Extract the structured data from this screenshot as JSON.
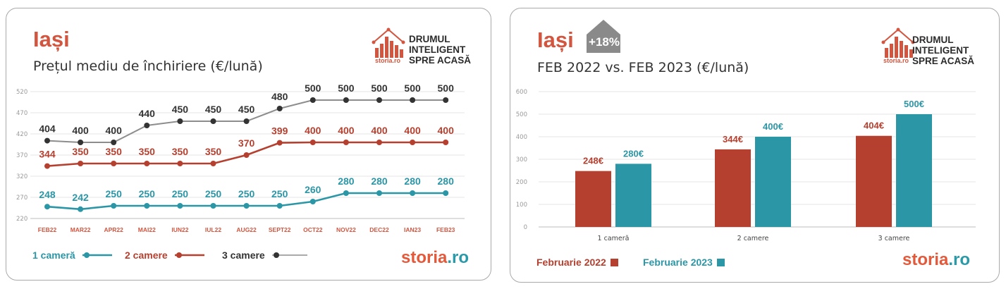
{
  "colors": {
    "accent": "#d2553f",
    "teal": "#2b96a6",
    "red": "#b5402f",
    "gray": "#8d8d8d",
    "dark": "#333333"
  },
  "brand": {
    "line1": "DRUMUL",
    "line2": "INTELIGENT",
    "line3": "SPRE ACASĂ",
    "logo_small": "storia.ro",
    "footer_storia": "storia",
    "footer_ro": ".ro"
  },
  "left_card": {
    "city": "Iași",
    "subtitle": "Prețul mediu de închiriere (€/lună)",
    "legend": [
      {
        "label": "1 cameră",
        "color": "#2b96a6"
      },
      {
        "label": "2 camere",
        "color": "#b5402f"
      },
      {
        "label": "3 camere",
        "color": "#333333"
      }
    ]
  },
  "right_card": {
    "city": "Iași",
    "badge": "+18%",
    "subtitle": "FEB 2022 vs. FEB 2023 (€/lună)",
    "legend": [
      {
        "label": "Februarie 2022",
        "color": "#b5402f"
      },
      {
        "label": "Februarie 2023",
        "color": "#2b96a6"
      }
    ]
  },
  "chart_data": [
    {
      "type": "line",
      "title": "Prețul mediu de închiriere (€/lună)",
      "categories": [
        "FEB22",
        "MAR22",
        "APR22",
        "MAI22",
        "IUN22",
        "IUL22",
        "AUG22",
        "SEPT22",
        "OCT22",
        "NOV22",
        "DEC22",
        "IAN23",
        "FEB23"
      ],
      "ylim": [
        220,
        520
      ],
      "yticks": [
        220,
        270,
        320,
        370,
        420,
        470,
        520
      ],
      "grid": true,
      "legend_position": "bottom-left",
      "series": [
        {
          "name": "1 cameră",
          "color": "#2b96a6",
          "values": [
            248,
            242,
            250,
            250,
            250,
            250,
            250,
            250,
            260,
            280,
            280,
            280,
            280
          ]
        },
        {
          "name": "2 camere",
          "color": "#b5402f",
          "values": [
            344,
            350,
            350,
            350,
            350,
            350,
            370,
            399,
            400,
            400,
            400,
            400,
            400
          ]
        },
        {
          "name": "3 camere",
          "color": "#8d8d8d",
          "label_color": "#333333",
          "values": [
            404,
            400,
            400,
            440,
            450,
            450,
            450,
            480,
            500,
            500,
            500,
            500,
            500
          ]
        }
      ]
    },
    {
      "type": "bar",
      "title": "FEB 2022 vs. FEB 2023 (€/lună)",
      "categories": [
        "1 cameră",
        "2 camere",
        "3 camere"
      ],
      "ylim": [
        0,
        600
      ],
      "yticks": [
        0,
        100,
        200,
        300,
        400,
        500,
        600
      ],
      "grid": true,
      "legend_position": "bottom-left",
      "series": [
        {
          "name": "Februarie 2022",
          "color": "#b5402f",
          "values": [
            248,
            344,
            404
          ],
          "labels": [
            "248€",
            "344€",
            "404€"
          ]
        },
        {
          "name": "Februarie 2023",
          "color": "#2b96a6",
          "values": [
            280,
            400,
            500
          ],
          "labels": [
            "280€",
            "400€",
            "500€"
          ]
        }
      ]
    }
  ]
}
